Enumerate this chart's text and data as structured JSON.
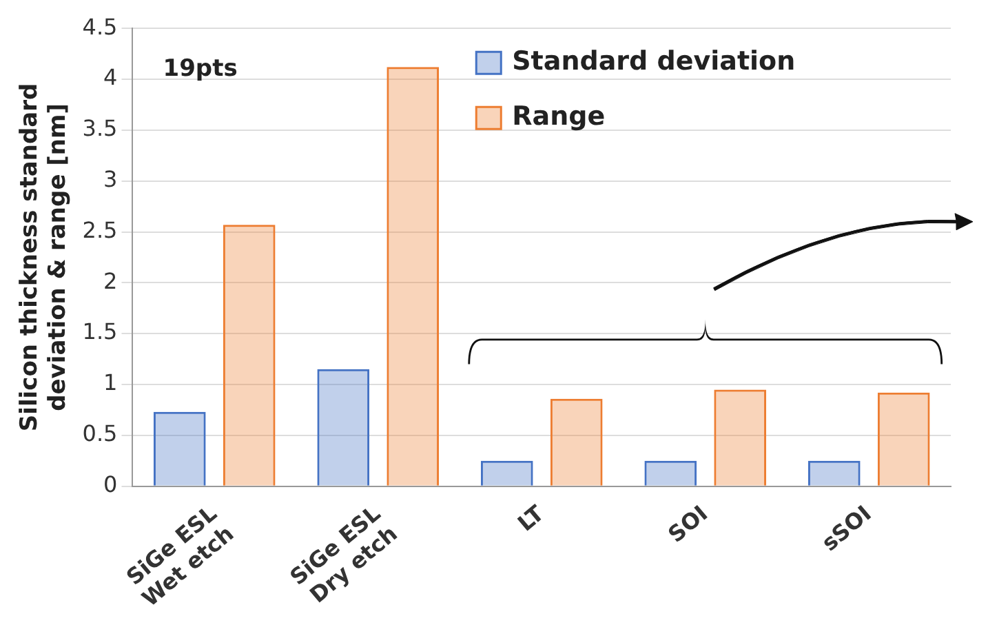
{
  "chart_data": {
    "type": "bar",
    "ylabel": "Silicon thickness standard\ndeviation & range [nm]",
    "categories": [
      "SiGe ESL\nWet etch",
      "SiGe ESL\nDry etch",
      "LT",
      "SOI",
      "sSOI"
    ],
    "series": [
      {
        "name": "Standard deviation",
        "color": "#4472c4",
        "values": [
          0.73,
          1.15,
          0.25,
          0.25,
          0.25
        ]
      },
      {
        "name": "Range",
        "color": "#ed7d31",
        "values": [
          2.57,
          4.12,
          0.86,
          0.95,
          0.92
        ]
      }
    ],
    "ylim": [
      0,
      4.5
    ],
    "yticks": [
      0,
      0.5,
      1,
      1.5,
      2,
      2.5,
      3,
      3.5,
      4,
      4.5
    ],
    "grid": "y",
    "legend": "top right",
    "annotations": [
      "19pts"
    ]
  }
}
